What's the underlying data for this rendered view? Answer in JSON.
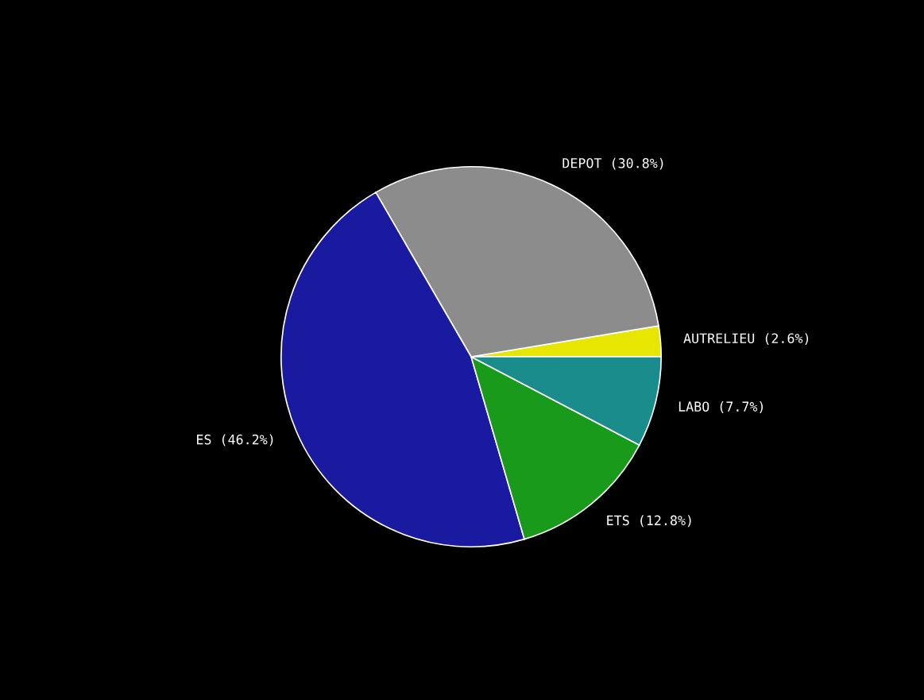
{
  "chart_data": {
    "type": "pie",
    "categories": [
      "AUTRELIEU (2.6%)",
      "DEPOT (30.8%)",
      "ES (46.2%)",
      "ETS (12.8%)",
      "LABO (7.7%)"
    ],
    "values": [
      2.6,
      30.8,
      46.2,
      12.8,
      7.7
    ],
    "colors": [
      "#e6e600",
      "#8c8c8c",
      "#1a1aa0",
      "#1a9a1a",
      "#1a8c8c"
    ]
  }
}
